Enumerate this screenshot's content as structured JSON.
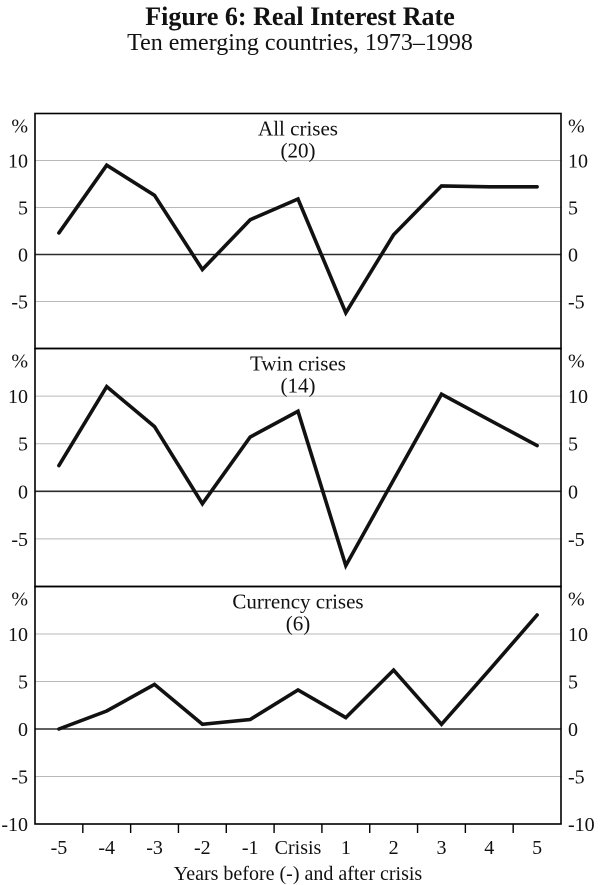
{
  "figure": {
    "title": "Figure 6: Real Interest Rate",
    "subtitle": "Ten emerging countries, 1973–1998",
    "unit_label": "%"
  },
  "chart_data": {
    "type": "line",
    "categories": [
      "-5",
      "-4",
      "-3",
      "-2",
      "-1",
      "Crisis",
      "1",
      "2",
      "3",
      "4",
      "5"
    ],
    "xlabel": "Years before (-) and after crisis",
    "ylabel": "%",
    "ylim": [
      -10,
      15
    ],
    "yticks": [
      10,
      5,
      0,
      -5
    ],
    "grid": true,
    "line_color": "#111111",
    "grid_color": "#b9b9b9",
    "zero_line_color": "#2b2b2b",
    "border_color": "#000000",
    "panels": [
      {
        "title": "All crises",
        "count": "(20)",
        "values": [
          2.3,
          9.5,
          6.3,
          -1.6,
          3.7,
          5.9,
          -6.2,
          2.1,
          7.3,
          7.2,
          7.2
        ]
      },
      {
        "title": "Twin crises",
        "count": "(14)",
        "values": [
          2.7,
          11.0,
          6.8,
          -1.3,
          5.7,
          8.4,
          -7.8,
          1.2,
          10.2,
          7.5,
          4.8
        ]
      },
      {
        "title": "Currency crises",
        "count": "(6)",
        "values": [
          0.0,
          1.9,
          4.7,
          0.5,
          1.0,
          4.1,
          1.2,
          6.2,
          0.5,
          6.2,
          12.0
        ],
        "extra_yticks": [
          -10
        ]
      }
    ]
  }
}
